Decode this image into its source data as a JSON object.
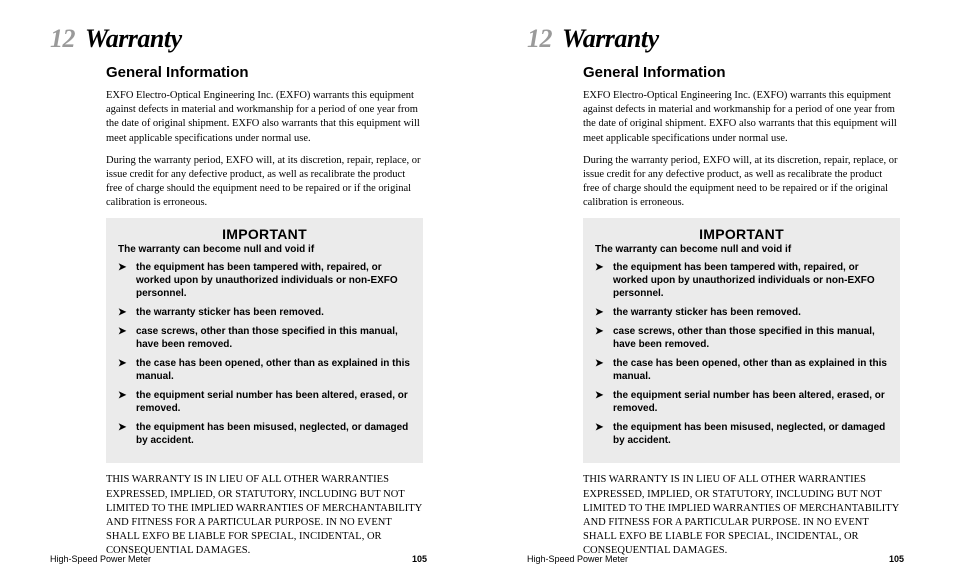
{
  "chapter": {
    "number": "12",
    "title": "Warranty"
  },
  "section": {
    "heading": "General Information"
  },
  "paragraphs": {
    "p1": "EXFO Electro-Optical Engineering Inc. (EXFO) warrants this equipment against defects in material and workmanship for a period of one year from the date of original shipment. EXFO also warrants that this equipment will meet applicable specifications under normal use.",
    "p2": "During the warranty period, EXFO will, at its discretion, repair, replace, or issue credit for any defective product, as well as recalibrate the product free of charge should the equipment need to be repaired or if the original calibration is erroneous."
  },
  "important": {
    "title": "IMPORTANT",
    "lead": "The warranty can become null and void if",
    "items": [
      "the equipment has been tampered with, repaired, or worked upon by unauthorized individuals or non-EXFO personnel.",
      "the warranty sticker has been removed.",
      "case screws, other than those specified in this manual, have been removed.",
      "the case has been opened, other than as explained in this manual.",
      "the equipment serial number has been altered, erased, or removed.",
      "the equipment has been misused, neglected, or damaged by accident."
    ]
  },
  "disclaimer": "THIS WARRANTY IS IN LIEU OF ALL OTHER WARRANTIES EXPRESSED, IMPLIED, OR STATUTORY, INCLUDING BUT NOT LIMITED TO THE IMPLIED WARRANTIES OF MERCHANTABILITY AND FITNESS FOR A PARTICULAR PURPOSE. IN NO EVENT SHALL EXFO BE LIABLE FOR SPECIAL, INCIDENTAL, OR CONSEQUENTIAL DAMAGES.",
  "footer": {
    "doc": "High-Speed Power Meter",
    "page": "105"
  },
  "colors": {
    "chapter_num": "#9a9a9a",
    "box_bg": "#ebebeb",
    "text": "#000000",
    "page_bg": "#ffffff"
  }
}
